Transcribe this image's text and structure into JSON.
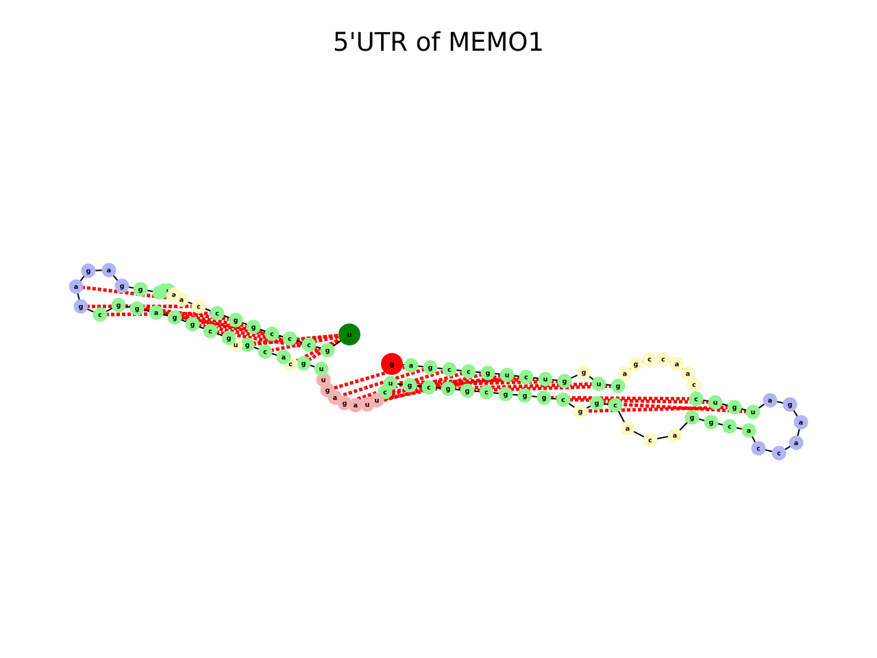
{
  "title": "5'UTR of MEMO1",
  "colors": {
    "stem": "#90f590",
    "hairpin_loop": "#b3b3f8",
    "internal_loop": "#fffac0",
    "external_loop": "#f8b0b0",
    "five_prime_end": "#ff0000",
    "three_prime_end": "#008000",
    "backbone": "#000000",
    "base_pair": "#ff0000"
  },
  "nucleotides": [
    {
      "base": "g",
      "type": "five_prime_end"
    },
    {
      "base": "a",
      "type": "stem"
    },
    {
      "base": "g",
      "type": "stem"
    },
    {
      "base": "c",
      "type": "stem"
    },
    {
      "base": "c",
      "type": "stem"
    },
    {
      "base": "g",
      "type": "stem"
    },
    {
      "base": "u",
      "type": "stem"
    },
    {
      "base": "c",
      "type": "stem"
    },
    {
      "base": "u",
      "type": "stem"
    },
    {
      "base": "g",
      "type": "stem"
    },
    {
      "base": "g",
      "type": "internal_loop"
    },
    {
      "base": "u",
      "type": "stem"
    },
    {
      "base": "g",
      "type": "stem"
    },
    {
      "base": "a",
      "type": "internal_loop"
    },
    {
      "base": "g",
      "type": "internal_loop"
    },
    {
      "base": "c",
      "type": "internal_loop"
    },
    {
      "base": "c",
      "type": "internal_loop"
    },
    {
      "base": "a",
      "type": "internal_loop"
    },
    {
      "base": "a",
      "type": "internal_loop"
    },
    {
      "base": "c",
      "type": "internal_loop"
    },
    {
      "base": "c",
      "type": "stem"
    },
    {
      "base": "u",
      "type": "stem"
    },
    {
      "base": "g",
      "type": "stem"
    },
    {
      "base": "u",
      "type": "stem"
    },
    {
      "base": "a",
      "type": "hairpin_loop"
    },
    {
      "base": "g",
      "type": "hairpin_loop"
    },
    {
      "base": "a",
      "type": "hairpin_loop"
    },
    {
      "base": "a",
      "type": "hairpin_loop"
    },
    {
      "base": "c",
      "type": "hairpin_loop"
    },
    {
      "base": "c",
      "type": "hairpin_loop"
    },
    {
      "base": "a",
      "type": "stem"
    },
    {
      "base": "c",
      "type": "stem"
    },
    {
      "base": "g",
      "type": "stem"
    },
    {
      "base": "g",
      "type": "stem"
    },
    {
      "base": "a",
      "type": "internal_loop"
    },
    {
      "base": "c",
      "type": "internal_loop"
    },
    {
      "base": "a",
      "type": "internal_loop"
    },
    {
      "base": "c",
      "type": "stem"
    },
    {
      "base": "g",
      "type": "stem"
    },
    {
      "base": "g",
      "type": "internal_loop"
    },
    {
      "base": "c",
      "type": "stem"
    },
    {
      "base": "g",
      "type": "stem"
    },
    {
      "base": "g",
      "type": "stem"
    },
    {
      "base": "g",
      "type": "stem"
    },
    {
      "base": "c",
      "type": "stem"
    },
    {
      "base": "g",
      "type": "stem"
    },
    {
      "base": "g",
      "type": "stem"
    },
    {
      "base": "c",
      "type": "stem"
    },
    {
      "base": "g",
      "type": "stem"
    },
    {
      "base": "u",
      "type": "stem"
    },
    {
      "base": "c",
      "type": "stem"
    },
    {
      "base": "u",
      "type": "external_loop"
    },
    {
      "base": "u",
      "type": "external_loop"
    },
    {
      "base": "a",
      "type": "external_loop"
    },
    {
      "base": "g",
      "type": "external_loop"
    },
    {
      "base": "a",
      "type": "external_loop"
    },
    {
      "base": "g",
      "type": "external_loop"
    },
    {
      "base": "u",
      "type": "external_loop"
    },
    {
      "base": "u",
      "type": "stem"
    },
    {
      "base": "g",
      "type": "stem"
    },
    {
      "base": "c",
      "type": "internal_loop"
    },
    {
      "base": "a",
      "type": "stem"
    },
    {
      "base": "c",
      "type": "stem"
    },
    {
      "base": "g",
      "type": "stem"
    },
    {
      "base": "u",
      "type": "internal_loop"
    },
    {
      "base": "g",
      "type": "stem"
    },
    {
      "base": "c",
      "type": "stem"
    },
    {
      "base": "g",
      "type": "stem"
    },
    {
      "base": "g",
      "type": "stem"
    },
    {
      "base": "a",
      "type": "stem"
    },
    {
      "base": "g",
      "type": "stem"
    },
    {
      "base": "g",
      "type": "stem"
    },
    {
      "base": "c",
      "type": "stem"
    },
    {
      "base": "g",
      "type": "hairpin_loop"
    },
    {
      "base": "a",
      "type": "hairpin_loop"
    },
    {
      "base": "g",
      "type": "hairpin_loop"
    },
    {
      "base": "a",
      "type": "hairpin_loop"
    },
    {
      "base": "g",
      "type": "hairpin_loop"
    },
    {
      "base": "g",
      "type": "stem"
    },
    {
      "base": "c",
      "type": "stem"
    },
    {
      "base": "c",
      "type": "stem"
    },
    {
      "base": "u",
      "type": "stem"
    },
    {
      "base": "a",
      "type": "internal_loop"
    },
    {
      "base": "a",
      "type": "internal_loop"
    },
    {
      "base": "c",
      "type": "internal_loop"
    },
    {
      "base": "c",
      "type": "stem"
    },
    {
      "base": "g",
      "type": "stem"
    },
    {
      "base": "g",
      "type": "stem"
    },
    {
      "base": "c",
      "type": "stem"
    },
    {
      "base": "c",
      "type": "stem"
    },
    {
      "base": "c",
      "type": "stem"
    },
    {
      "base": "g",
      "type": "stem"
    },
    {
      "base": "u",
      "type": "stem"
    },
    {
      "base": "c",
      "type": "stem"
    },
    {
      "base": "g",
      "type": "stem"
    },
    {
      "base": "u",
      "type": "three_prime_end"
    }
  ],
  "base_pairs": [
    [
      1,
      56
    ],
    [
      2,
      55
    ],
    [
      3,
      54
    ],
    [
      4,
      53
    ],
    [
      5,
      52
    ],
    [
      6,
      51
    ],
    [
      7,
      50
    ],
    [
      8,
      49
    ],
    [
      9,
      48
    ],
    [
      11,
      46
    ],
    [
      12,
      45
    ],
    [
      20,
      41
    ],
    [
      21,
      40
    ],
    [
      22,
      39
    ],
    [
      23,
      38
    ],
    [
      59,
      96
    ],
    [
      60,
      95
    ],
    [
      62,
      94
    ],
    [
      63,
      93
    ],
    [
      64,
      92
    ],
    [
      66,
      91
    ],
    [
      67,
      90
    ],
    [
      68,
      89
    ],
    [
      69,
      88
    ],
    [
      70,
      87
    ],
    [
      71,
      86
    ],
    [
      72,
      85
    ],
    [
      73,
      84
    ],
    [
      74,
      83
    ]
  ]
}
